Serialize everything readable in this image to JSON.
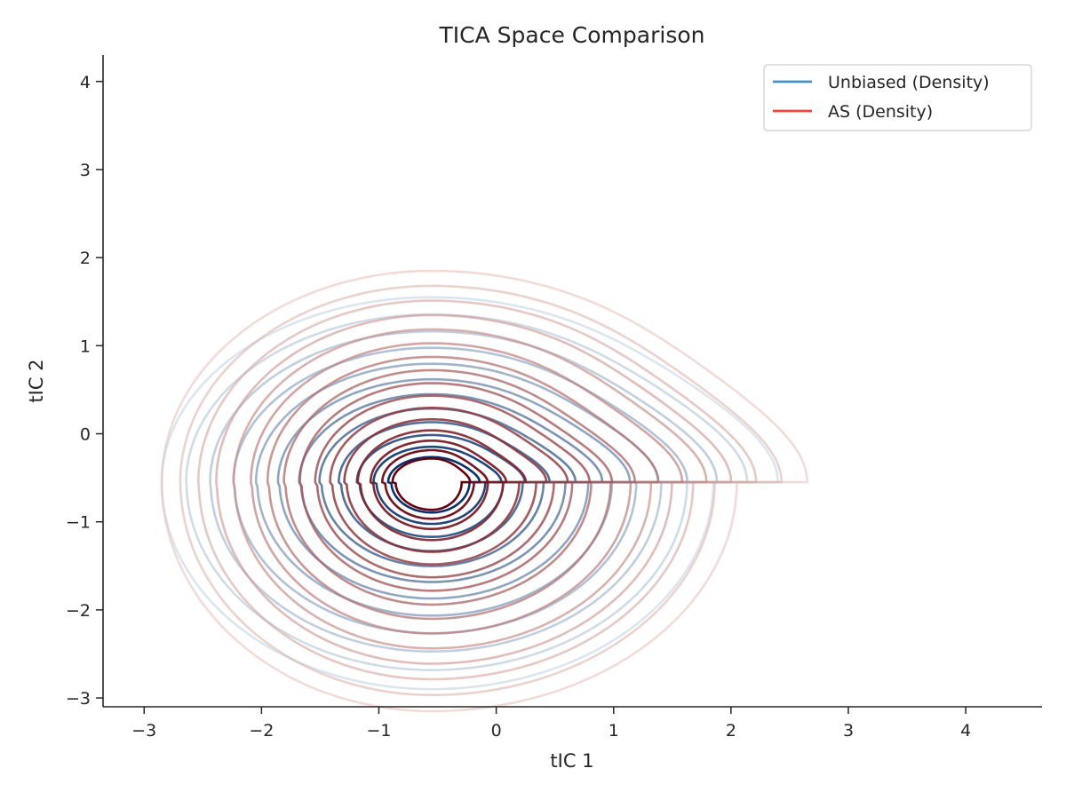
{
  "chart_data": {
    "type": "contour",
    "title": "TICA Space Comparison",
    "xlabel": "tIC 1",
    "ylabel": "tIC 2",
    "xlim": [
      -3.35,
      4.65
    ],
    "ylim": [
      -3.1,
      4.3
    ],
    "xticks": [
      -3,
      -2,
      -1,
      0,
      1,
      2,
      3,
      4
    ],
    "yticks": [
      -3,
      -2,
      -1,
      0,
      1,
      2,
      3,
      4
    ],
    "xtick_labels": [
      "−3",
      "−2",
      "−1",
      "0",
      "1",
      "2",
      "3",
      "4"
    ],
    "ytick_labels": [
      "−3",
      "−2",
      "−1",
      "0",
      "1",
      "2",
      "3",
      "4"
    ],
    "grid": false,
    "legend_position": "top-right",
    "series": [
      {
        "name": "Unbiased (Density)",
        "color": "#4292c6",
        "color_scale": [
          "#deebf7",
          "#08306b"
        ],
        "peak": [
          -0.55,
          -0.55
        ],
        "levels": 12
      },
      {
        "name": "AS (Density)",
        "color": "#e9483a",
        "color_scale": [
          "#fee0d2",
          "#67000d"
        ],
        "peak": [
          -0.55,
          -0.55
        ],
        "levels": 16
      }
    ]
  }
}
